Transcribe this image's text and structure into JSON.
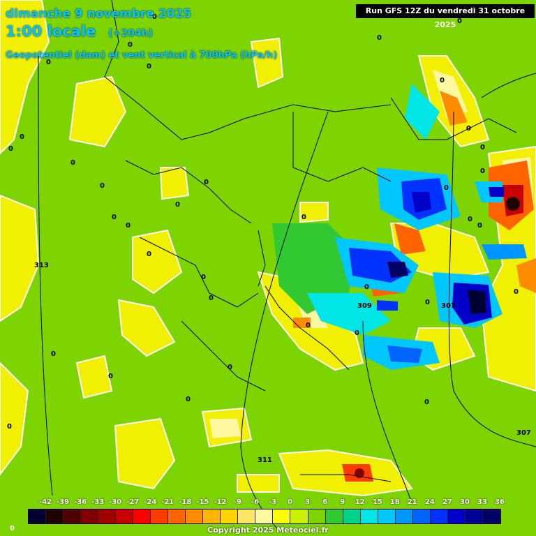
{
  "header": {
    "date_line": "dimanche 9 novembre 2025",
    "time_line": "1:00 locale",
    "forecast_offset": "(+204h)",
    "field_line": "Geopotentiel (dam) et vent vertical à 700hPa (hPa/h)",
    "run_info": "Run GFS 12Z du vendredi 31 octobre 2025"
  },
  "colors": {
    "background_zero": "#7ed400",
    "contour": "#ffffff",
    "borders": "#000000",
    "title": "#00c8ff"
  },
  "colorbar": {
    "ticks": [
      "-42",
      "-39",
      "-36",
      "-33",
      "-30",
      "-27",
      "-24",
      "-21",
      "-18",
      "-15",
      "-12",
      "-9",
      "-6",
      "-3",
      "0",
      "3",
      "6",
      "9",
      "12",
      "15",
      "18",
      "21",
      "24",
      "27",
      "30",
      "33",
      "36"
    ],
    "swatches": [
      "#000030",
      "#200000",
      "#500000",
      "#800000",
      "#a00000",
      "#c80000",
      "#ff0000",
      "#ff3c00",
      "#ff6400",
      "#ff8c00",
      "#ffb400",
      "#ffd200",
      "#ffe664",
      "#fff8a0",
      "#ffff00",
      "#c8f000",
      "#7ed400",
      "#32c832",
      "#00d28c",
      "#00e6e6",
      "#00c8ff",
      "#0096ff",
      "#0064ff",
      "#0032ff",
      "#0000c8",
      "#000096",
      "#000064"
    ]
  },
  "contour_labels": [
    {
      "text": "0"
    },
    {
      "text": "0"
    },
    {
      "text": "0"
    },
    {
      "text": "0"
    },
    {
      "text": "0"
    },
    {
      "text": "0"
    },
    {
      "text": "0"
    },
    {
      "text": "0"
    },
    {
      "text": "0"
    },
    {
      "text": "0"
    },
    {
      "text": "0"
    },
    {
      "text": "0"
    },
    {
      "text": "0"
    },
    {
      "text": "0"
    },
    {
      "text": "0"
    },
    {
      "text": "0"
    },
    {
      "text": "0"
    },
    {
      "text": "0"
    },
    {
      "text": "0"
    },
    {
      "text": "0"
    },
    {
      "text": "0"
    },
    {
      "text": "0"
    },
    {
      "text": "0"
    },
    {
      "text": "0"
    },
    {
      "text": "0"
    },
    {
      "text": "0"
    },
    {
      "text": "0"
    },
    {
      "text": "0"
    },
    {
      "text": "0"
    },
    {
      "text": "0"
    },
    {
      "text": "0"
    },
    {
      "text": "0"
    },
    {
      "text": "0"
    },
    {
      "text": "0"
    },
    {
      "text": "0"
    },
    {
      "text": "0"
    },
    {
      "text": "313"
    },
    {
      "text": "311"
    },
    {
      "text": "309"
    },
    {
      "text": "307"
    },
    {
      "text": "307"
    }
  ],
  "bottom_left_label": "0",
  "copyright": "Copyright 2025 Meteociel.fr"
}
